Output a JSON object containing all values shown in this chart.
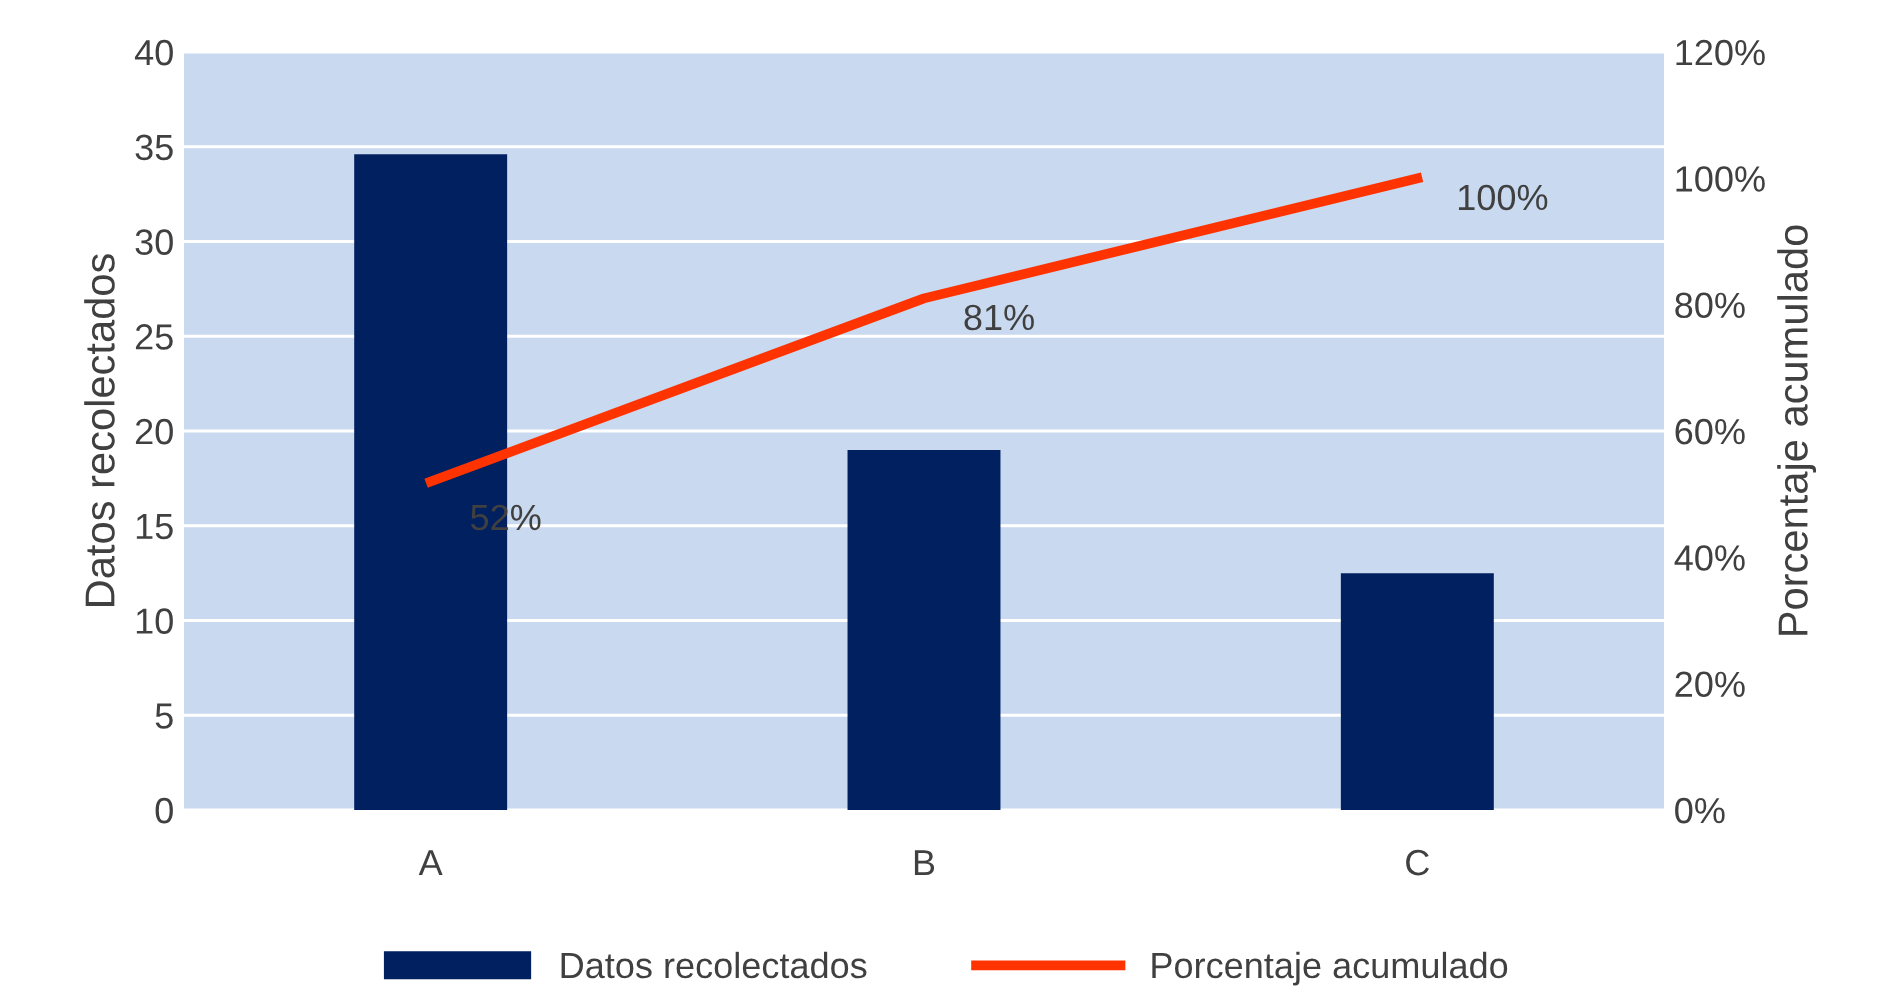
{
  "chart_data": {
    "type": "bar",
    "ylabel": "Datos recolectados",
    "y2label": "Porcentaje acumulado",
    "categories": [
      "A",
      "B",
      "C"
    ],
    "series": [
      {
        "name": "Datos recolectados",
        "color": "#002060",
        "values": [
          34.6,
          19,
          12.5
        ]
      },
      {
        "name": "Porcentaje acumulado",
        "type": "line",
        "axis": "y2",
        "color": "#ff3300",
        "values": [
          52,
          81,
          100
        ],
        "value_labels": [
          "52%",
          "81%",
          "100%"
        ]
      }
    ],
    "ylim": [
      0,
      40
    ],
    "yticks": [
      0,
      5,
      10,
      15,
      20,
      25,
      30,
      35,
      40
    ],
    "y2lim": [
      0,
      120
    ],
    "y2ticks": [
      {
        "value": 0,
        "label": "0%"
      },
      {
        "value": 20,
        "label": "20%"
      },
      {
        "value": 40,
        "label": "40%"
      },
      {
        "value": 60,
        "label": "60%"
      },
      {
        "value": 80,
        "label": "80%"
      },
      {
        "value": 100,
        "label": "100%"
      },
      {
        "value": 120,
        "label": "120%"
      }
    ],
    "grid": "y",
    "legend": "bottom",
    "marker": "none",
    "line_style": "solid"
  }
}
